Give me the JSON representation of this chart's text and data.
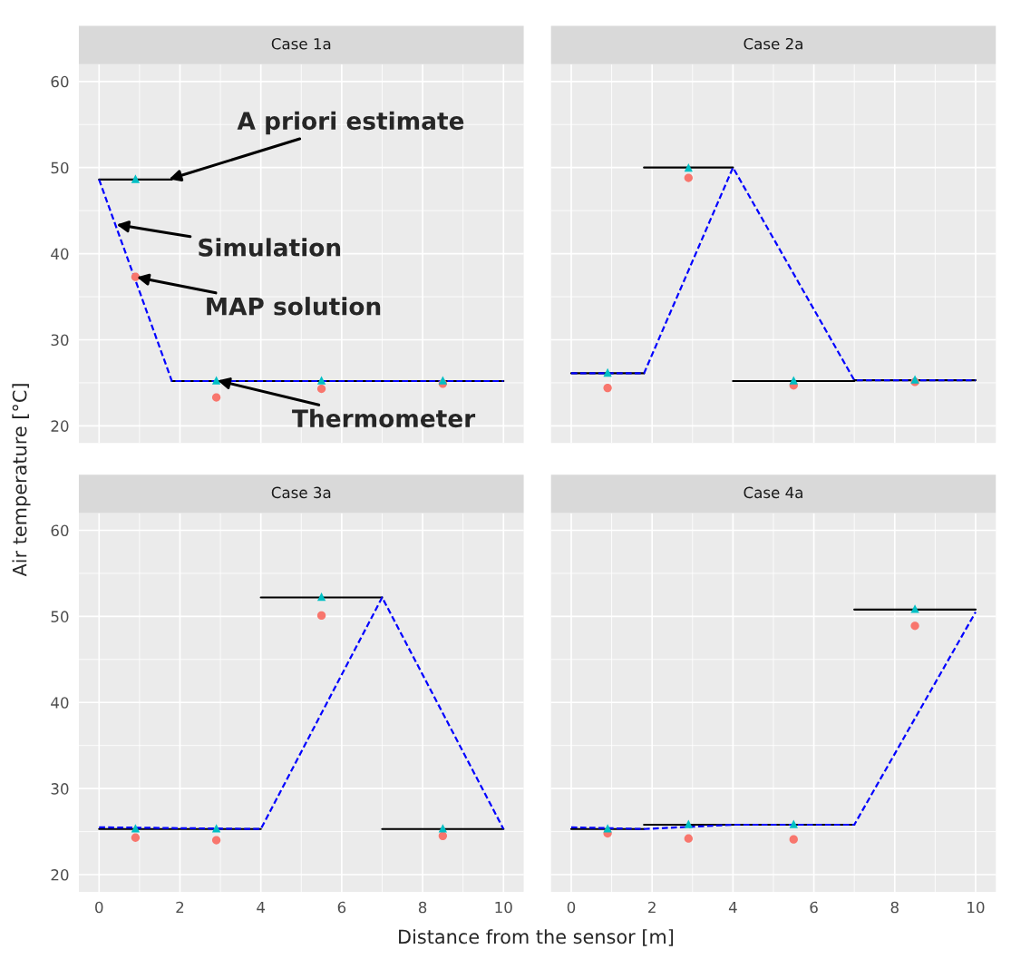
{
  "chart_data": [
    {
      "type": "line",
      "title": "Case 1a",
      "ylabel": "Air temperature [°C]",
      "xlim": [
        -0.5,
        10.5
      ],
      "xticks": [
        0,
        2,
        4,
        6,
        8,
        10
      ],
      "ylim": [
        18,
        62
      ],
      "yticks": [
        20,
        30,
        40,
        50,
        60
      ],
      "grid": true,
      "tick_labels": "y",
      "annotations": [
        {
          "text": "A priori estimate",
          "x": 1.7,
          "y": 48.6
        },
        {
          "text": "Simulation",
          "x": 0.4,
          "y": 43.4
        },
        {
          "text": "MAP solution",
          "x": 0.9,
          "y": 37.3
        },
        {
          "text": "Thermometer",
          "x": 2.9,
          "y": 25.3
        }
      ],
      "series": [
        {
          "color": "#000000",
          "line_style": "solid",
          "marker": "none",
          "x": [
            0,
            1.8
          ],
          "values": [
            48.6,
            48.6
          ]
        },
        {
          "color": "#000000",
          "line_style": "solid",
          "marker": "none",
          "x": [
            1.8,
            10
          ],
          "values": [
            25.2,
            25.2
          ]
        },
        {
          "color": "#0000ff",
          "line_style": "dashed",
          "marker": "none",
          "x": [
            0,
            1.8,
            10
          ],
          "values": [
            48.6,
            25.2,
            25.2
          ]
        },
        {
          "type": "scatter",
          "color": "#f8766d",
          "marker": "circle",
          "x": [
            0.9,
            2.9,
            5.5,
            8.5
          ],
          "values": [
            37.3,
            23.3,
            24.3,
            24.9
          ]
        },
        {
          "type": "scatter",
          "color": "#00bfc4",
          "marker": "triangle",
          "x": [
            0.9,
            2.9,
            5.5,
            8.5
          ],
          "values": [
            48.7,
            25.3,
            25.3,
            25.3
          ]
        }
      ]
    },
    {
      "type": "line",
      "title": "Case 2a",
      "xlim": [
        -0.5,
        10.5
      ],
      "xticks": [
        0,
        2,
        4,
        6,
        8,
        10
      ],
      "ylim": [
        18,
        62
      ],
      "yticks": [
        20,
        30,
        40,
        50,
        60
      ],
      "grid": true,
      "tick_labels": false,
      "series": [
        {
          "color": "#000000",
          "line_style": "solid",
          "marker": "none",
          "x": [
            0,
            1.8
          ],
          "values": [
            26.1,
            26.1
          ]
        },
        {
          "color": "#000000",
          "line_style": "solid",
          "marker": "none",
          "x": [
            1.8,
            4
          ],
          "values": [
            50,
            50
          ]
        },
        {
          "color": "#000000",
          "line_style": "solid",
          "marker": "none",
          "x": [
            4,
            7,
            7,
            10
          ],
          "values": [
            25.2,
            25.2,
            25.3,
            25.3
          ]
        },
        {
          "color": "#0000ff",
          "line_style": "dashed",
          "marker": "none",
          "x": [
            0,
            1.8,
            4,
            7,
            10
          ],
          "values": [
            26.1,
            26.1,
            50,
            25.3,
            25.3
          ]
        },
        {
          "type": "scatter",
          "color": "#f8766d",
          "marker": "circle",
          "x": [
            0.9,
            2.9,
            5.5,
            8.5
          ],
          "values": [
            24.4,
            48.8,
            24.7,
            25.1
          ]
        },
        {
          "type": "scatter",
          "color": "#00bfc4",
          "marker": "triangle",
          "x": [
            0.9,
            2.9,
            5.5,
            8.5
          ],
          "values": [
            26.2,
            50.0,
            25.3,
            25.4
          ]
        }
      ]
    },
    {
      "type": "line",
      "title": "Case 3a",
      "xlabel": "Distance from the sensor [m]",
      "xlim": [
        -0.5,
        10.5
      ],
      "xticks": [
        0,
        2,
        4,
        6,
        8,
        10
      ],
      "ylim": [
        18,
        62
      ],
      "yticks": [
        20,
        30,
        40,
        50,
        60
      ],
      "grid": true,
      "series": [
        {
          "color": "#000000",
          "line_style": "solid",
          "marker": "none",
          "x": [
            0,
            4
          ],
          "values": [
            25.3,
            25.3
          ]
        },
        {
          "color": "#000000",
          "line_style": "solid",
          "marker": "none",
          "x": [
            4,
            7
          ],
          "values": [
            52.2,
            52.2
          ]
        },
        {
          "color": "#000000",
          "line_style": "solid",
          "marker": "none",
          "x": [
            7,
            10
          ],
          "values": [
            25.3,
            25.3
          ]
        },
        {
          "color": "#0000ff",
          "line_style": "dashed",
          "marker": "none",
          "x": [
            0,
            4,
            7,
            10
          ],
          "values": [
            25.5,
            25.3,
            52.2,
            25.3
          ]
        },
        {
          "type": "scatter",
          "color": "#f8766d",
          "marker": "circle",
          "x": [
            0.9,
            2.9,
            5.5,
            8.5
          ],
          "values": [
            24.3,
            24.0,
            50.1,
            24.5
          ]
        },
        {
          "type": "scatter",
          "color": "#00bfc4",
          "marker": "triangle",
          "x": [
            0.9,
            2.9,
            5.5,
            8.5
          ],
          "values": [
            25.4,
            25.4,
            52.3,
            25.4
          ]
        }
      ]
    },
    {
      "type": "line",
      "title": "Case 4a",
      "xlim": [
        -0.5,
        10.5
      ],
      "xticks": [
        0,
        2,
        4,
        6,
        8,
        10
      ],
      "ylim": [
        18,
        62
      ],
      "yticks": [
        20,
        30,
        40,
        50,
        60
      ],
      "grid": true,
      "tick_labels": "x",
      "series": [
        {
          "color": "#000000",
          "line_style": "solid",
          "marker": "none",
          "x": [
            0,
            1.8
          ],
          "values": [
            25.3,
            25.3
          ]
        },
        {
          "color": "#000000",
          "line_style": "solid",
          "marker": "none",
          "x": [
            1.8,
            7
          ],
          "values": [
            25.8,
            25.8
          ]
        },
        {
          "color": "#000000",
          "line_style": "solid",
          "marker": "none",
          "x": [
            7,
            10
          ],
          "values": [
            50.8,
            50.8
          ]
        },
        {
          "color": "#0000ff",
          "line_style": "dashed",
          "marker": "none",
          "x": [
            0,
            1.8,
            4,
            7,
            10
          ],
          "values": [
            25.5,
            25.3,
            25.8,
            25.8,
            50.5
          ]
        },
        {
          "type": "scatter",
          "color": "#f8766d",
          "marker": "circle",
          "x": [
            0.9,
            2.9,
            5.5,
            8.5
          ],
          "values": [
            24.8,
            24.2,
            24.1,
            48.9
          ]
        },
        {
          "type": "scatter",
          "color": "#00bfc4",
          "marker": "triangle",
          "x": [
            0.9,
            2.9,
            5.5,
            8.5
          ],
          "values": [
            25.4,
            25.9,
            25.9,
            50.9
          ]
        }
      ]
    }
  ]
}
